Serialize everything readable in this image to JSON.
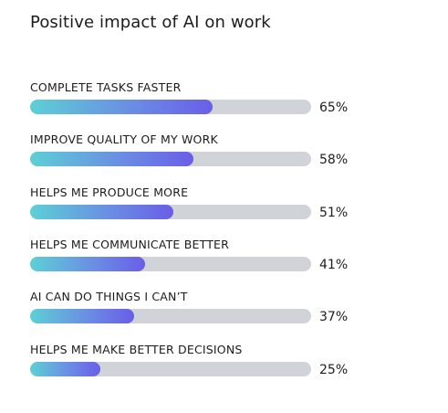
{
  "chart_data": {
    "type": "bar",
    "title": "Positive impact of AI on work",
    "orientation": "horizontal",
    "categories": [
      "COMPLETE TASKS FASTER",
      "IMPROVE QUALITY OF MY WORK",
      "HELPS ME PRODUCE MORE",
      "HELPS ME COMMUNICATE BETTER",
      "AI CAN DO THINGS I CAN’T",
      "HELPS ME MAKE BETTER DECISIONS"
    ],
    "values": [
      65,
      58,
      51,
      41,
      37,
      25
    ],
    "value_labels": [
      "65%",
      "58%",
      "51%",
      "41%",
      "37%",
      "25%"
    ],
    "xlim": [
      0,
      100
    ],
    "grid": false,
    "colors": {
      "gradient_start": "#5dd0d6",
      "gradient_mid": "#6a8ee3",
      "gradient_end": "#6a5ee8",
      "track": "#d0d3d8"
    }
  }
}
